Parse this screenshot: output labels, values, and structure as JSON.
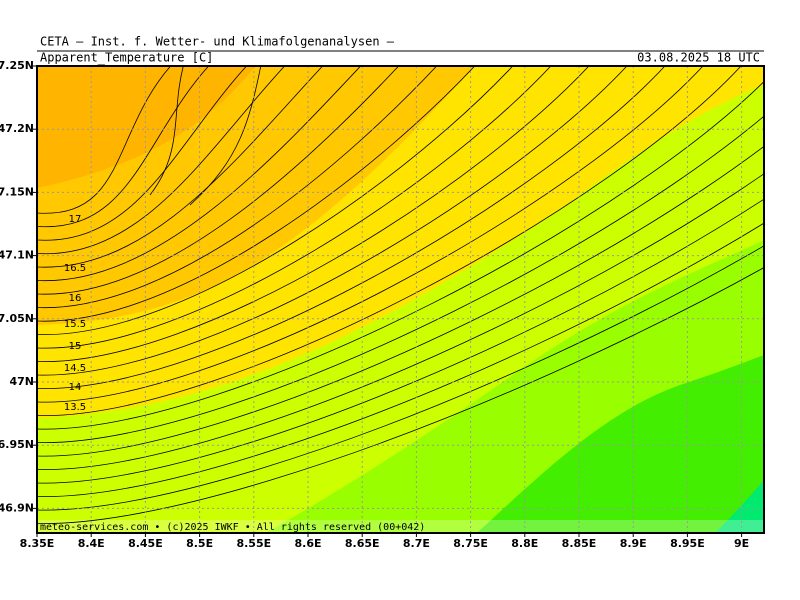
{
  "header": {
    "institute": "CETA — Inst. f. Wetter- und Klimafolgenanalysen —",
    "parameter": "Apparent_Temperature [C]",
    "valid_time": "03.08.2025 18 UTC"
  },
  "map": {
    "x_labels": [
      "8.35E",
      "8.4E",
      "8.45E",
      "8.5E",
      "8.55E",
      "8.6E",
      "8.65E",
      "8.7E",
      "8.75E",
      "8.8E",
      "8.85E",
      "8.9E",
      "8.95E",
      "9E"
    ],
    "y_labels": [
      "7.25N",
      "47.2N",
      "7.15N",
      "47.1N",
      "7.05N",
      "47N",
      "6.95N",
      "46.9N"
    ],
    "contour_labels": [
      "17",
      "16.5",
      "16",
      "15.5",
      "15",
      "14.5",
      "14",
      "13.5"
    ]
  },
  "footer": "meteo-services.com • (c)2025 IWKF • All rights reserved (00+042)"
}
